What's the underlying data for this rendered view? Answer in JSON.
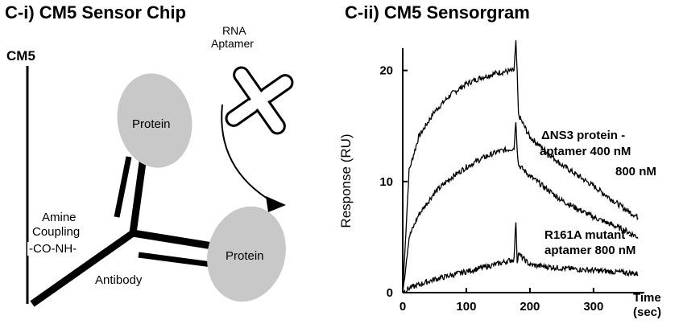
{
  "left_panel": {
    "title": "C-i)  CM5  Sensor Chip",
    "chip_label": "CM5",
    "aptamer_label_line1": "RNA",
    "aptamer_label_line2": "Aptamer",
    "protein_top": "Protein",
    "protein_bottom": "Protein",
    "coupling_line1": "Amine",
    "coupling_line2": "Coupling",
    "coupling_chem": "-CO-NH-",
    "antibody": "Antibody",
    "ellipse_fill": "#c8c8c8"
  },
  "right_panel": {
    "title": "C-ii)  CM5  Sensorgram",
    "annotation_wt_line1": "ΔNS3 protein -",
    "annotation_wt_line2": "aptamer 400 nM",
    "annotation_wt_line3": "800 nM",
    "annotation_mut_line1": "R161A mutant -",
    "annotation_mut_line2": "aptamer 800 nM",
    "chart_data": {
      "type": "line",
      "xlabel_line1": "Time",
      "xlabel_line2": "(sec)",
      "ylabel": "Response (RU)",
      "xlim": [
        0,
        380
      ],
      "ylim": [
        0,
        22
      ],
      "x_ticks": [
        0,
        100,
        200,
        300
      ],
      "y_ticks": [
        0,
        10,
        20
      ],
      "injection_end_sec": 180,
      "series": [
        {
          "name": "ΔNS3 protein - aptamer 800 nM",
          "x": [
            0,
            10,
            25,
            50,
            75,
            100,
            125,
            150,
            175,
            178,
            180,
            182,
            200,
            250,
            300,
            350,
            370
          ],
          "y": [
            0,
            11,
            14,
            16.3,
            17.8,
            18.8,
            19.4,
            19.8,
            20,
            22.5,
            19.7,
            16,
            14,
            11.5,
            9.6,
            7.5,
            6.8
          ]
        },
        {
          "name": "ΔNS3 protein - aptamer 400 nM",
          "x": [
            0,
            10,
            25,
            50,
            75,
            100,
            125,
            150,
            175,
            178,
            180,
            182,
            200,
            250,
            300,
            350,
            370
          ],
          "y": [
            0,
            5,
            7,
            9,
            10.3,
            11.3,
            12.1,
            12.7,
            13,
            15.5,
            13,
            11.5,
            10.5,
            8.3,
            6.8,
            5.6,
            5
          ]
        },
        {
          "name": "R161A mutant - aptamer 800 nM",
          "x": [
            0,
            10,
            50,
            100,
            150,
            175,
            178,
            180,
            182,
            200,
            250,
            300,
            350,
            370
          ],
          "y": [
            0,
            0.4,
            1.2,
            1.9,
            2.6,
            3,
            6.5,
            2.8,
            3.5,
            2.5,
            2.2,
            2.0,
            1.8,
            1.7
          ]
        }
      ]
    }
  }
}
